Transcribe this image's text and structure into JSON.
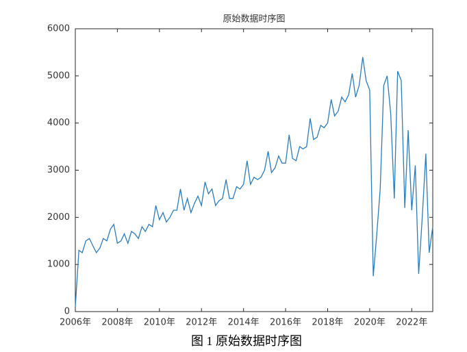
{
  "chart_data": {
    "type": "line",
    "title": "原始数据时序图",
    "caption": "图 1 原始数据时序图",
    "x": [
      2006,
      2006.17,
      2006.33,
      2006.5,
      2006.67,
      2006.83,
      2007,
      2007.17,
      2007.33,
      2007.5,
      2007.67,
      2007.83,
      2008,
      2008.17,
      2008.33,
      2008.5,
      2008.67,
      2008.83,
      2009,
      2009.17,
      2009.33,
      2009.5,
      2009.67,
      2009.83,
      2010,
      2010.17,
      2010.33,
      2010.5,
      2010.67,
      2010.83,
      2011,
      2011.17,
      2011.33,
      2011.5,
      2011.67,
      2011.83,
      2012,
      2012.17,
      2012.33,
      2012.5,
      2012.67,
      2012.83,
      2013,
      2013.17,
      2013.33,
      2013.5,
      2013.67,
      2013.83,
      2014,
      2014.17,
      2014.33,
      2014.5,
      2014.67,
      2014.83,
      2015,
      2015.17,
      2015.33,
      2015.5,
      2015.67,
      2015.83,
      2016,
      2016.17,
      2016.33,
      2016.5,
      2016.67,
      2016.83,
      2017,
      2017.17,
      2017.33,
      2017.5,
      2017.67,
      2017.83,
      2018,
      2018.17,
      2018.33,
      2018.5,
      2018.67,
      2018.83,
      2019,
      2019.17,
      2019.33,
      2019.5,
      2019.67,
      2019.83,
      2020,
      2020.17,
      2020.33,
      2020.5,
      2020.67,
      2020.83,
      2021,
      2021.17,
      2021.33,
      2021.5,
      2021.67,
      2021.83,
      2022,
      2022.17,
      2022.33,
      2022.5,
      2022.67,
      2022.83,
      2023
    ],
    "series": [
      {
        "color": "#2b7bba",
        "values": [
          100,
          1300,
          1250,
          1500,
          1550,
          1400,
          1250,
          1350,
          1550,
          1500,
          1750,
          1850,
          1450,
          1500,
          1650,
          1450,
          1700,
          1650,
          1550,
          1800,
          1700,
          1850,
          1800,
          2250,
          1950,
          2100,
          1900,
          2000,
          2150,
          2150,
          2600,
          2150,
          2400,
          2100,
          2300,
          2450,
          2250,
          2750,
          2500,
          2600,
          2250,
          2350,
          2400,
          2800,
          2400,
          2400,
          2650,
          2600,
          2700,
          3200,
          2700,
          2850,
          2800,
          2850,
          3000,
          3400,
          2950,
          3050,
          3300,
          3150,
          3150,
          3750,
          3250,
          3200,
          3500,
          3450,
          3500,
          4100,
          3650,
          3700,
          3950,
          3900,
          4000,
          4500,
          4150,
          4250,
          4550,
          4450,
          4600,
          5050,
          4550,
          4800,
          5400,
          4900,
          4700,
          750,
          1600,
          2600,
          4800,
          5000,
          4200,
          2400,
          5100,
          4900,
          2200,
          3850,
          2150,
          3100,
          800,
          2000,
          3350,
          1250,
          1800
        ]
      }
    ],
    "xlim": [
      2006,
      2023
    ],
    "xticks": [
      {
        "value": 2006,
        "label": "2006年"
      },
      {
        "value": 2008,
        "label": "2008年"
      },
      {
        "value": 2010,
        "label": "2010年"
      },
      {
        "value": 2012,
        "label": "2012年"
      },
      {
        "value": 2014,
        "label": "2014年"
      },
      {
        "value": 2016,
        "label": "2016年"
      },
      {
        "value": 2018,
        "label": "2018年"
      },
      {
        "value": 2020,
        "label": "2020年"
      },
      {
        "value": 2022,
        "label": "2022年"
      }
    ],
    "ylim": [
      0,
      6000
    ],
    "yticks": [
      0,
      1000,
      2000,
      3000,
      4000,
      5000,
      6000
    ]
  }
}
